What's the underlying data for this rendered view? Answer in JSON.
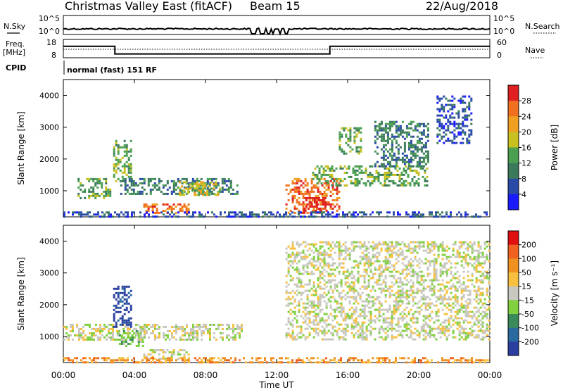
{
  "header": {
    "station": "Christmas Valley East (fitACF)",
    "beam": "Beam 15",
    "date": "22/Aug/2018"
  },
  "noise_panel": {
    "left_label": "N.Sky",
    "right_label": "N.Search",
    "left_ticks": [
      "10^5",
      "10^0"
    ],
    "right_ticks": [
      "10^5",
      "10^0"
    ]
  },
  "freq_panel": {
    "left_label_line1": "Freq.",
    "left_label_line2": "[MHz]",
    "right_label": "Nave",
    "left_ticks": [
      "18",
      "8"
    ],
    "right_ticks": [
      "60",
      "0"
    ],
    "freq_steps": [
      {
        "start_hour": 0.0,
        "end_hour": 2.9,
        "mhz": 17
      },
      {
        "start_hour": 2.9,
        "end_hour": 15.0,
        "mhz": 11
      },
      {
        "start_hour": 15.0,
        "end_hour": 24.0,
        "mhz": 17
      }
    ]
  },
  "cpid": {
    "label": "CPID",
    "mode": "normal (fast) 151 RF"
  },
  "time_axis": {
    "label": "Time UT",
    "ticks": [
      "00:00",
      "04:00",
      "08:00",
      "12:00",
      "16:00",
      "20:00",
      "00:00"
    ]
  },
  "colors": {
    "power": [
      "#1a1aff",
      "#2a4aa8",
      "#3a7a5a",
      "#4aa050",
      "#c8c020",
      "#f0a020",
      "#f07020",
      "#e02020"
    ],
    "velocity": [
      "#2b3fa0",
      "#2a6aa0",
      "#3a8a5a",
      "#80d040",
      "#c8c8c0",
      "#f8c040",
      "#f09020",
      "#f06020",
      "#e01010"
    ]
  },
  "chart_data": [
    {
      "type": "heatmap",
      "title": "Power",
      "ylabel": "Slant Range [km]",
      "xlabel": "",
      "y_ticks": [
        "1000",
        "2000",
        "3000",
        "4000"
      ],
      "ylim": [
        180,
        4500
      ],
      "xlim_hours": [
        0,
        24
      ],
      "colorbar_label": "Power [dB]",
      "colorbar_ticks": [
        "4",
        "8",
        "12",
        "16",
        "20",
        "24",
        "28"
      ],
      "regions": [
        {
          "h0": 0.8,
          "h1": 2.6,
          "r0": 800,
          "r1": 1400,
          "level": 3
        },
        {
          "h0": 2.8,
          "h1": 3.8,
          "r0": 1300,
          "r1": 2600,
          "level": 3
        },
        {
          "h0": 3.2,
          "h1": 9.8,
          "r0": 900,
          "r1": 1400,
          "level": 2
        },
        {
          "h0": 6.5,
          "h1": 8.8,
          "r0": 900,
          "r1": 1300,
          "level": 4
        },
        {
          "h0": 4.5,
          "h1": 7.0,
          "r0": 300,
          "r1": 600,
          "level": 6
        },
        {
          "h0": 12.5,
          "h1": 15.5,
          "r0": 300,
          "r1": 1400,
          "level": 6
        },
        {
          "h0": 13.5,
          "h1": 14.8,
          "r0": 300,
          "r1": 800,
          "level": 7
        },
        {
          "h0": 14.0,
          "h1": 20.5,
          "r0": 1200,
          "r1": 1800,
          "level": 3
        },
        {
          "h0": 15.5,
          "h1": 16.8,
          "r0": 2200,
          "r1": 3000,
          "level": 3
        },
        {
          "h0": 17.5,
          "h1": 20.5,
          "r0": 1800,
          "r1": 3200,
          "level": 2
        },
        {
          "h0": 21.0,
          "h1": 23.0,
          "r0": 2500,
          "r1": 4000,
          "level": 1
        },
        {
          "h0": 0.0,
          "h1": 24.0,
          "r0": 180,
          "r1": 350,
          "level": 1
        }
      ]
    },
    {
      "type": "heatmap",
      "title": "Velocity",
      "ylabel": "Slant Range [km]",
      "xlabel": "Time UT",
      "y_ticks": [
        "1000",
        "2000",
        "3000",
        "4000"
      ],
      "ylim": [
        180,
        4500
      ],
      "xlim_hours": [
        0,
        24
      ],
      "colorbar_label": "Velocity [m s⁻¹]",
      "colorbar_ticks": [
        "200",
        "100",
        "50",
        "15",
        "-15",
        "-50",
        "-100",
        "-200"
      ],
      "regions": [
        {
          "h0": 0.0,
          "h1": 10.0,
          "r0": 900,
          "r1": 1400,
          "level": 4
        },
        {
          "h0": 2.8,
          "h1": 3.8,
          "r0": 1300,
          "r1": 2600,
          "level": 0
        },
        {
          "h0": 3.0,
          "h1": 4.5,
          "r0": 700,
          "r1": 1200,
          "level": 3
        },
        {
          "h0": 4.5,
          "h1": 7.0,
          "r0": 300,
          "r1": 600,
          "level": 4
        },
        {
          "h0": 12.5,
          "h1": 24.0,
          "r0": 900,
          "r1": 4000,
          "level": 4
        },
        {
          "h0": 0.0,
          "h1": 24.0,
          "r0": 180,
          "r1": 350,
          "level": 6
        }
      ]
    }
  ]
}
